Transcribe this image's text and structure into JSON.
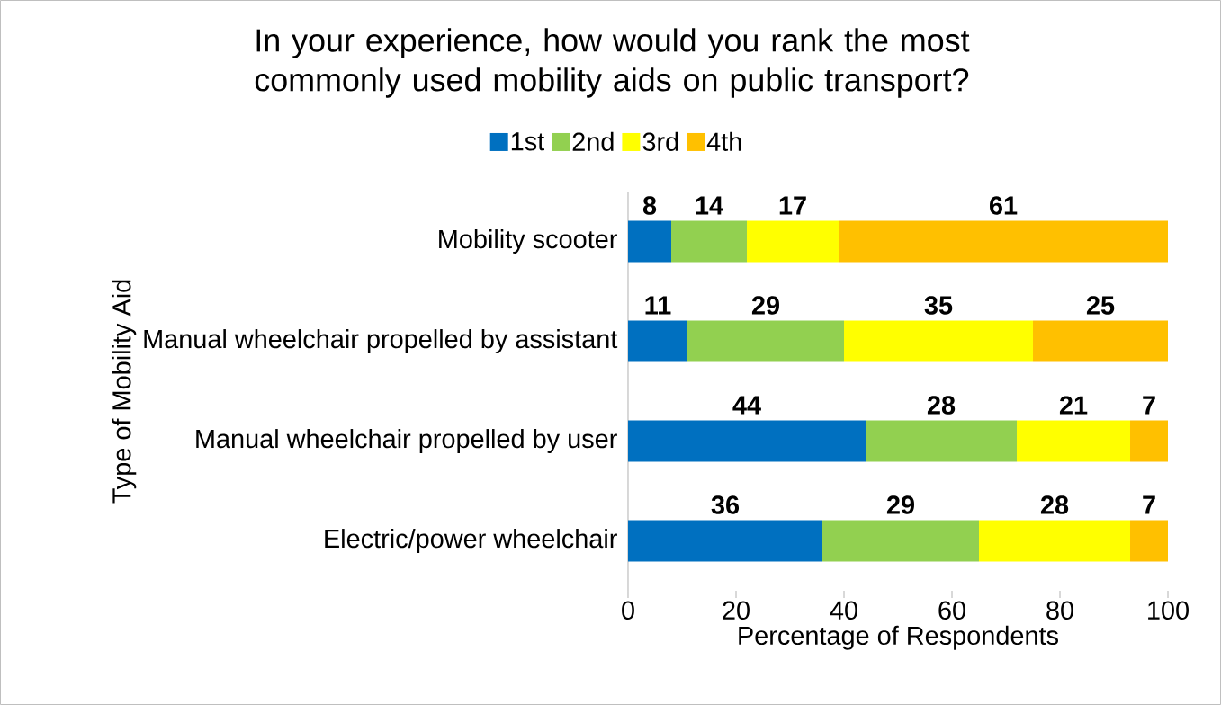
{
  "chart_data": {
    "type": "bar",
    "orientation": "horizontal",
    "stacked": true,
    "title": "In your experience, how would you rank the most commonly used mobility aids on public transport?",
    "xlabel": "Percentage of Respondents",
    "ylabel": "Type of Mobility Aid",
    "categories": [
      "Mobility scooter",
      "Manual wheelchair propelled by assistant",
      "Manual wheelchair propelled by user",
      "Electric/power wheelchair"
    ],
    "series": [
      {
        "name": "1st",
        "color": "#0070c0",
        "values": [
          8,
          11,
          44,
          36
        ]
      },
      {
        "name": "2nd",
        "color": "#92d050",
        "values": [
          14,
          29,
          28,
          29
        ]
      },
      {
        "name": "3rd",
        "color": "#ffff00",
        "values": [
          17,
          35,
          21,
          28
        ]
      },
      {
        "name": "4th",
        "color": "#ffc000",
        "values": [
          61,
          25,
          7,
          7
        ]
      }
    ],
    "xlim": [
      0,
      100
    ],
    "xticks": [
      0,
      20,
      40,
      60,
      80,
      100
    ],
    "data_labels": true,
    "legend": "top",
    "grid": false
  }
}
